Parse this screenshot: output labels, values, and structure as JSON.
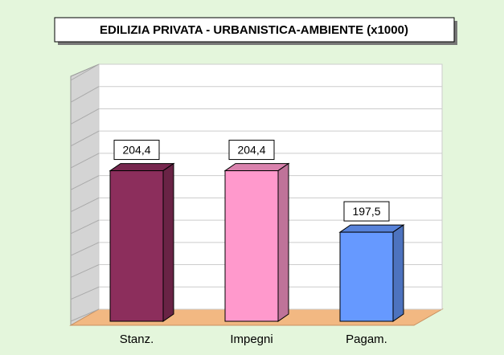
{
  "chart_data": {
    "type": "bar3d",
    "title": "EDILIZIA PRIVATA - URBANISTICA-AMBIENTE (x1000)",
    "categories": [
      "Stanz.",
      "Impegni",
      "Pagam."
    ],
    "values": [
      204.4,
      204.4,
      197.5
    ],
    "value_labels": [
      "204,4",
      "204,4",
      "197,5"
    ],
    "colors": [
      "#8c2e5c",
      "#ff99cc",
      "#6699ff"
    ],
    "ylim": [
      187.5,
      215
    ],
    "yticks": [
      187.5,
      190,
      192.5,
      195,
      197.5,
      200,
      202.5,
      205,
      207.5,
      210,
      212.5,
      215
    ],
    "grid": true
  }
}
